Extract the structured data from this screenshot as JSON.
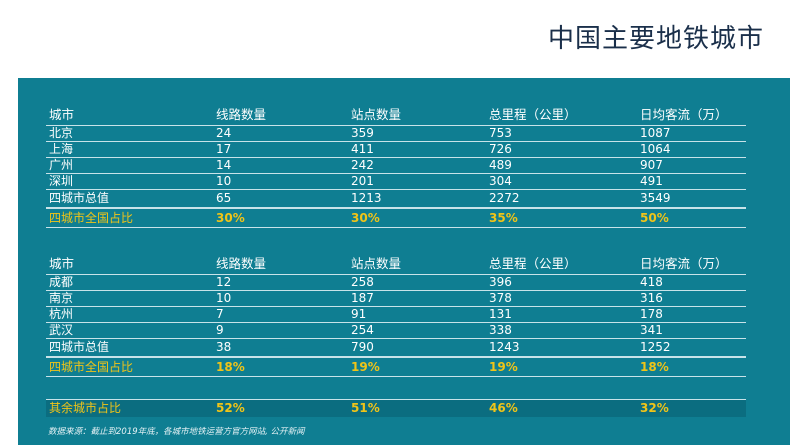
{
  "title": "中国主要地铁城市",
  "columns": [
    "城市",
    "线路数量",
    "站点数量",
    "总里程（公里）",
    "日均客流（万）"
  ],
  "group1": {
    "rows": [
      [
        "北京",
        "24",
        "359",
        "753",
        "1087"
      ],
      [
        "上海",
        "17",
        "411",
        "726",
        "1064"
      ],
      [
        "广州",
        "14",
        "242",
        "489",
        "907"
      ],
      [
        "深圳",
        "10",
        "201",
        "304",
        "491"
      ]
    ],
    "total": [
      "四城市总值",
      "65",
      "1213",
      "2272",
      "3549"
    ],
    "share": [
      "四城市全国占比",
      "30%",
      "30%",
      "35%",
      "50%"
    ]
  },
  "group2": {
    "rows": [
      [
        "成都",
        "12",
        "258",
        "396",
        "418"
      ],
      [
        "南京",
        "10",
        "187",
        "378",
        "316"
      ],
      [
        "杭州",
        "7",
        "91",
        "131",
        "178"
      ],
      [
        "武汉",
        "9",
        "254",
        "338",
        "341"
      ]
    ],
    "total": [
      "四城市总值",
      "38",
      "790",
      "1243",
      "1252"
    ],
    "share": [
      "四城市全国占比",
      "18%",
      "19%",
      "19%",
      "18%"
    ]
  },
  "remainder": [
    "其余城市占比",
    "52%",
    "51%",
    "46%",
    "32%"
  ],
  "source": "数据来源：截止到2019年底，各城市地铁运营方官方网站, 公开新闻",
  "colors": {
    "panel": "#0f7e92",
    "highlight": "#f0c418",
    "title": "#1a2f4a"
  }
}
